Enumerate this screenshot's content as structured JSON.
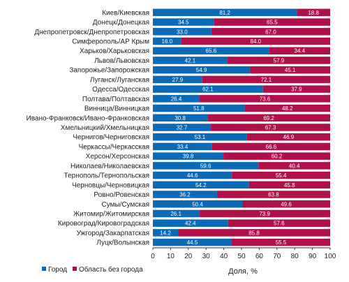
{
  "chart_data": {
    "type": "bar",
    "orientation": "horizontal",
    "stacked": true,
    "categories": [
      "Киев/Киевская",
      "Донецк/Донецкая",
      "Днепропетровск/Днепропетровская",
      "Симферополь/АР Крым",
      "Харьков/Харьковская",
      "Львов/Львовская",
      "Запорожье/Запорожская",
      "Луганск/Луганская",
      "Одесса/Одесская",
      "Полтава/Полтавская",
      "Винница/Винницкая",
      "Ивано-Франковск/Ивано-Франковская",
      "Хмельницкий/Хмельницкая",
      "Чернигов/Черниговская",
      "Черкассы/Черкасская",
      "Херсон/Херсонская",
      "Николаев/Николаевская",
      "Тернополь/Тернопольская",
      "Черновцы/Черновицкая",
      "Ровно/Ровенская",
      "Сумы/Сумская",
      "Житомир/Житомирская",
      "Кировоград/Кировоградская",
      "Ужгород/Закарпатская",
      "Луцк/Волынская"
    ],
    "series": [
      {
        "name": "Город",
        "color": "#0a6ab8",
        "values": [
          81.2,
          34.5,
          33.0,
          16.0,
          65.6,
          42.1,
          54.9,
          27.9,
          62.1,
          26.4,
          51.8,
          30.8,
          32.7,
          53.1,
          33.4,
          39.8,
          59.6,
          44.6,
          54.2,
          36.2,
          50.4,
          26.1,
          42.4,
          14.2,
          44.5
        ]
      },
      {
        "name": "Область без города",
        "color": "#b0104a",
        "values": [
          18.8,
          65.5,
          67.0,
          84.0,
          34.4,
          57.9,
          45.1,
          72.1,
          37.9,
          73.6,
          48.2,
          69.2,
          67.3,
          46.9,
          66.6,
          60.2,
          40.4,
          55.4,
          45.8,
          63.8,
          49.6,
          73.9,
          57.6,
          85.8,
          55.5
        ]
      }
    ],
    "xlim": [
      0,
      100
    ],
    "xticks": [
      "0",
      "10",
      "20",
      "30",
      "40",
      "50",
      "60",
      "70",
      "80",
      "90",
      "100"
    ],
    "xlabel": "Доля, %",
    "ylabel": "",
    "title": "",
    "legend_position": "bottom-left",
    "grid": false
  }
}
